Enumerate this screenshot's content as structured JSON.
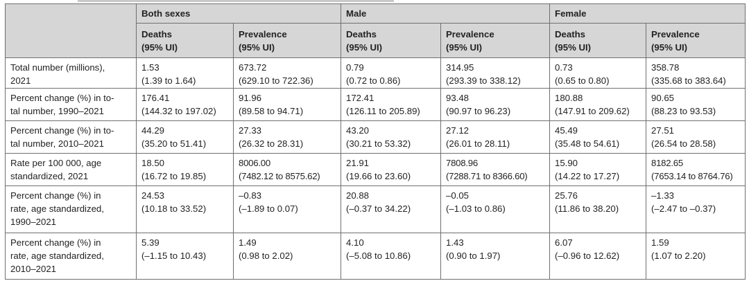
{
  "table": {
    "groups": [
      "Both sexes",
      "Male",
      "Female"
    ],
    "subheaders": [
      {
        "line1": "Deaths",
        "line2": "(95% UI)"
      },
      {
        "line1": "Prevalence",
        "line2": "(95% UI)"
      },
      {
        "line1": "Deaths",
        "line2": "(95% UI)"
      },
      {
        "line1": "Prevalence",
        "line2": "(95% UI)"
      },
      {
        "line1": "Deaths",
        "line2": "(95% UI)"
      },
      {
        "line1": "Prevalence",
        "line2": "(95% UI)"
      }
    ],
    "rows": [
      {
        "label_lines": [
          "Total number (millions),",
          "2021"
        ],
        "cells": [
          {
            "value": "1.53",
            "ui": "(1.39 to 1.64)"
          },
          {
            "value": "673.72",
            "ui": "(629.10 to 722.36)"
          },
          {
            "value": "0.79",
            "ui": "(0.72 to 0.86)"
          },
          {
            "value": "314.95",
            "ui": "(293.39 to 338.12)"
          },
          {
            "value": "0.73",
            "ui": "(0.65 to 0.80)"
          },
          {
            "value": "358.78",
            "ui": "(335.68 to 383.64)"
          }
        ]
      },
      {
        "label_lines": [
          "Percent change (%) in to-",
          "tal number, 1990–2021"
        ],
        "cells": [
          {
            "value": "176.41",
            "ui": "(144.32 to 197.02)"
          },
          {
            "value": "91.96",
            "ui": "(89.58 to 94.71)"
          },
          {
            "value": "172.41",
            "ui": "(126.11 to 205.89)"
          },
          {
            "value": "93.48",
            "ui": "(90.97 to 96.23)"
          },
          {
            "value": "180.88",
            "ui": "(147.91 to 209.62)"
          },
          {
            "value": "90.65",
            "ui": "(88.23 to 93.53)"
          }
        ]
      },
      {
        "label_lines": [
          "Percent change (%) in to-",
          "tal number, 2010–2021"
        ],
        "cells": [
          {
            "value": "44.29",
            "ui": "(35.20 to 51.41)"
          },
          {
            "value": "27.33",
            "ui": "(26.32 to 28.31)"
          },
          {
            "value": "43.20",
            "ui": "(30.21 to 53.32)"
          },
          {
            "value": "27.12",
            "ui": "(26.01 to 28.11)"
          },
          {
            "value": "45.49",
            "ui": "(35.48 to 54.61)"
          },
          {
            "value": "27.51",
            "ui": "(26.54 to 28.58)"
          }
        ]
      },
      {
        "label_lines": [
          "Rate per 100 000, age",
          "standardized, 2021"
        ],
        "cells": [
          {
            "value": "18.50",
            "ui": "(16.72 to 19.85)"
          },
          {
            "value": "8006.00",
            "ui": "(7482.12 to 8575.62)"
          },
          {
            "value": "21.91",
            "ui": "(19.66 to 23.60)"
          },
          {
            "value": "7808.96",
            "ui": "(7288.71 to 8366.60)"
          },
          {
            "value": "15.90",
            "ui": "(14.22 to 17.27)"
          },
          {
            "value": "8182.65",
            "ui": "(7653.14 to 8764.76)"
          }
        ]
      },
      {
        "label_lines": [
          "Percent change (%) in",
          "rate, age standardized,",
          "1990–2021"
        ],
        "cells": [
          {
            "value": "24.53",
            "ui": "(10.18 to 33.52)"
          },
          {
            "value": "–0.83",
            "ui": "(–1.89 to 0.07)"
          },
          {
            "value": "20.88",
            "ui": "(–0.37 to 34.22)"
          },
          {
            "value": "–0.05",
            "ui": "(–1.03 to 0.86)"
          },
          {
            "value": "25.76",
            "ui": "(11.86 to 38.20)"
          },
          {
            "value": "–1.33",
            "ui": "(–2.47 to –0.37)"
          }
        ]
      },
      {
        "label_lines": [
          "Percent change (%) in",
          "rate, age standardized,",
          "2010–2021"
        ],
        "cells": [
          {
            "value": "5.39",
            "ui": "(–1.15 to 10.43)"
          },
          {
            "value": "1.49",
            "ui": "(0.98 to 2.02)"
          },
          {
            "value": "4.10",
            "ui": "(–5.08 to 10.86)"
          },
          {
            "value": "1.43",
            "ui": "(0.90 to 1.97)"
          },
          {
            "value": "6.07",
            "ui": "(–0.96 to 12.62)"
          },
          {
            "value": "1.59",
            "ui": "(1.07 to 2.20)"
          }
        ]
      }
    ]
  }
}
